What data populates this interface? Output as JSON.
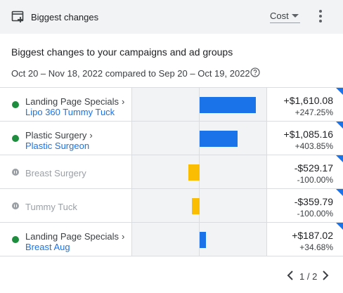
{
  "header": {
    "title": "Biggest changes",
    "metric": "Cost",
    "icons": {
      "card": "card-add-icon",
      "menu": "more-vert-icon",
      "caret": "caret-down-icon"
    }
  },
  "heading": "Biggest changes to your campaigns and ad groups",
  "date_range": "Oct 20 – Nov 18, 2022 compared to Sep 20 – Oct 19, 2022",
  "colors": {
    "increase": "#1a73e8",
    "decrease": "#fbbc04",
    "active": "#1e8e3e",
    "paused": "#9aa0a6",
    "link": "#1a73e8"
  },
  "rows": [
    {
      "status": "active",
      "campaign": "Landing Page Specials",
      "ad_group": "Lipo 360 Tummy Tuck",
      "change": "+$1,610.08",
      "percent": "+247.25%",
      "change_value": 1610.08
    },
    {
      "status": "active",
      "campaign": "Plastic Surgery",
      "ad_group": "Plastic Surgeon",
      "change": "+$1,085.16",
      "percent": "+403.85%",
      "change_value": 1085.16
    },
    {
      "status": "paused",
      "campaign": "Breast Surgery",
      "ad_group": "",
      "change": "-$529.17",
      "percent": "-100.00%",
      "change_value": -529.17
    },
    {
      "status": "paused",
      "campaign": "Tummy Tuck",
      "ad_group": "",
      "change": "-$359.79",
      "percent": "-100.00%",
      "change_value": -359.79
    },
    {
      "status": "active",
      "campaign": "Landing Page Specials",
      "ad_group": "Breast Aug",
      "change": "+$187.02",
      "percent": "+34.68%",
      "change_value": 187.02
    }
  ],
  "pagination": {
    "text": "1 / 2"
  }
}
